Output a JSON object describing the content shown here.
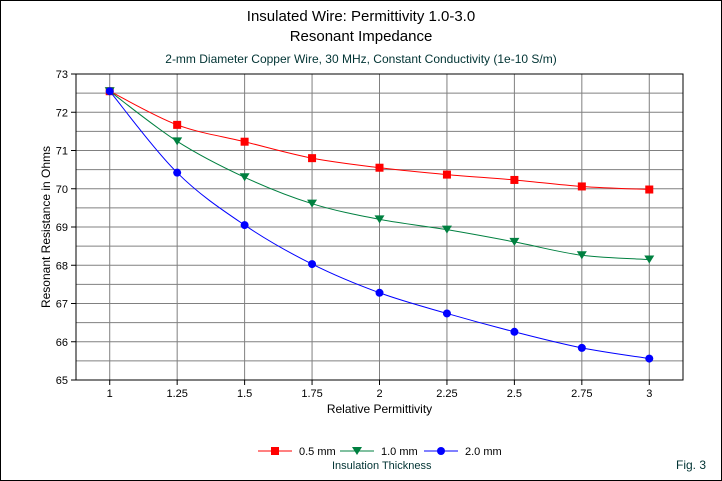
{
  "chart_data": {
    "type": "line",
    "title": "Insulated Wire:  Permittivity 1.0-3.0",
    "title_line2": "Resonant Impedance",
    "subtitle": "2-mm Diameter Copper Wire, 30 MHz, Constant Conductivity (1e-10 S/m)",
    "xlabel": "Relative Permittivity",
    "ylabel": "Resonant Resistance in Ohms",
    "x": [
      1,
      1.25,
      1.5,
      1.75,
      2,
      2.25,
      2.5,
      2.75,
      3
    ],
    "x_tick_labels": [
      "1",
      "1.25",
      "1.5",
      "1.75",
      "2",
      "2.25",
      "2.5",
      "2.75",
      "3"
    ],
    "y_tick_labels": [
      "73",
      "72",
      "71",
      "70",
      "69",
      "68",
      "67",
      "66",
      "65"
    ],
    "xlim": [
      0.875,
      3.125
    ],
    "ylim": [
      65,
      73
    ],
    "grid": true,
    "legend_title": "Insulation Thickness",
    "legend_position": "bottom",
    "series": [
      {
        "name": "0.5 mm",
        "color": "#ff0000",
        "marker": "square",
        "values": [
          72.55,
          71.67,
          71.23,
          70.8,
          70.55,
          70.37,
          70.23,
          70.06,
          69.98
        ]
      },
      {
        "name": "1.0 mm",
        "color": "#008040",
        "marker": "triangle-down",
        "values": [
          72.55,
          71.24,
          70.3,
          69.61,
          69.2,
          68.93,
          68.61,
          68.26,
          68.15
        ]
      },
      {
        "name": "2.0 mm",
        "color": "#0000ff",
        "marker": "circle",
        "values": [
          72.55,
          70.42,
          69.05,
          68.03,
          67.28,
          66.74,
          66.26,
          65.84,
          65.56
        ]
      }
    ]
  },
  "figure_label": "Fig. 3"
}
